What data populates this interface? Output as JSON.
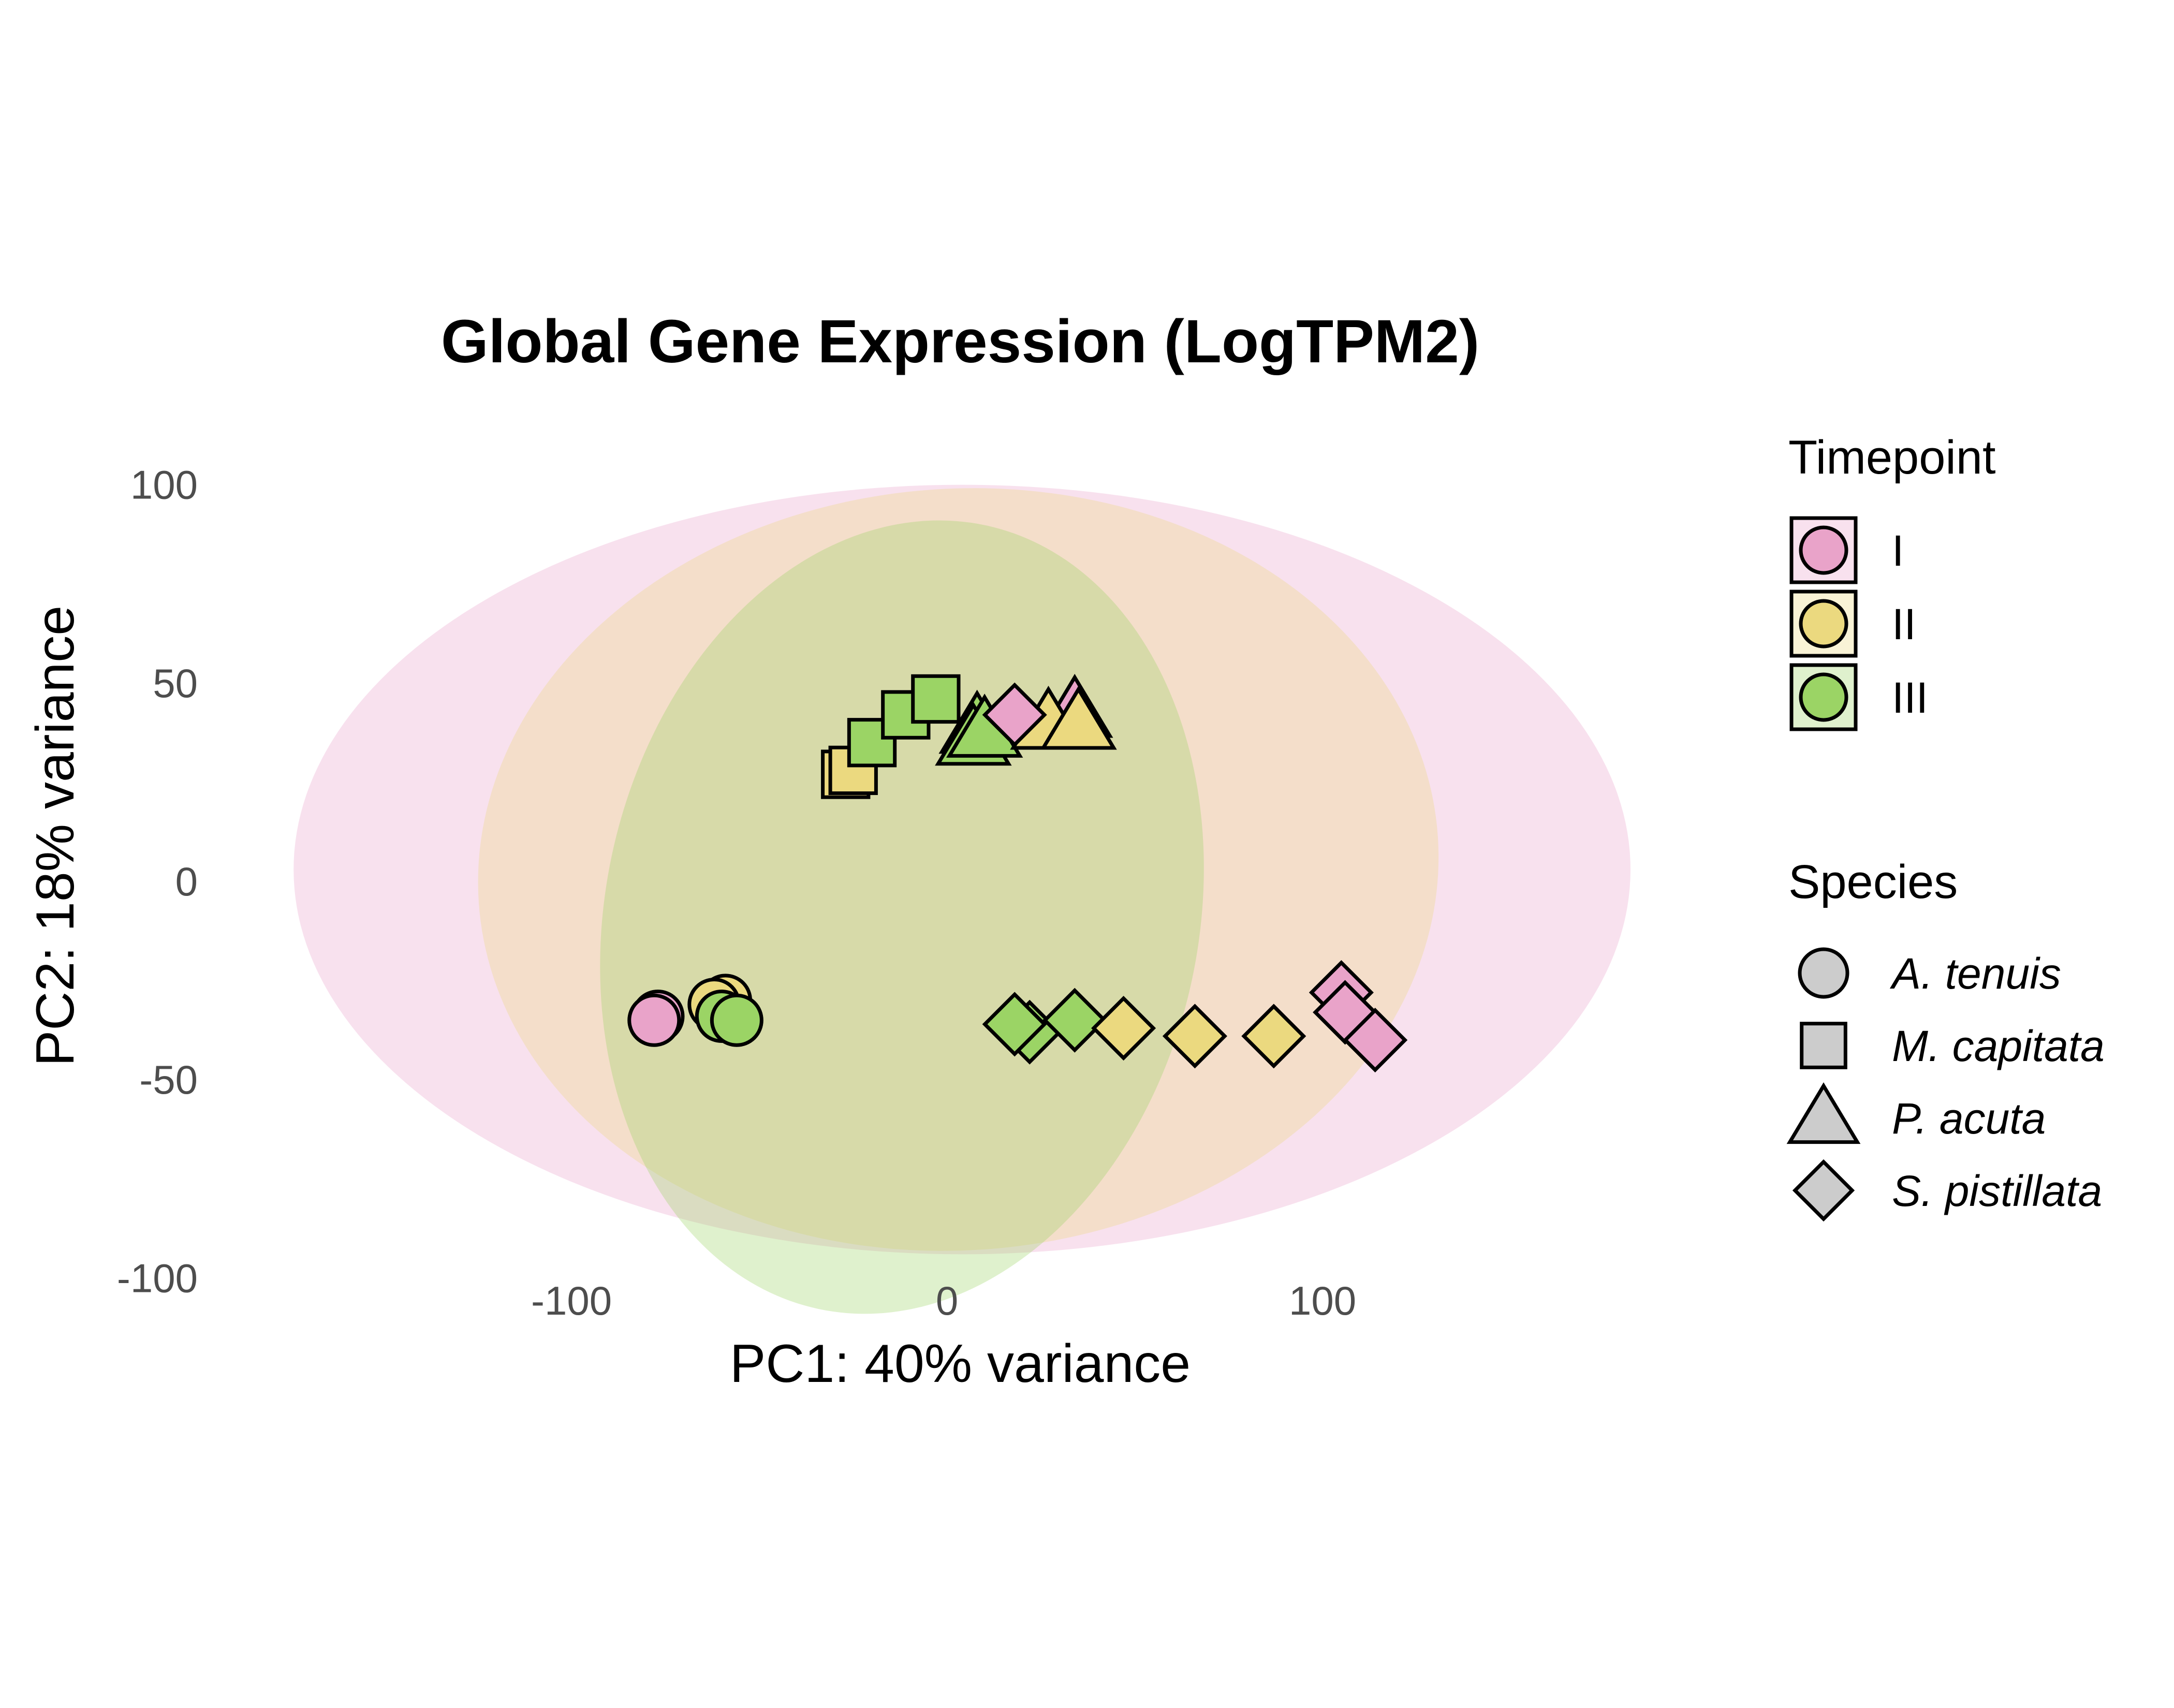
{
  "chart_data": {
    "type": "scatter",
    "title": "Global Gene Expression (LogTPM2)",
    "xlabel": "PC1: 40% variance",
    "ylabel": "PC2: 18% variance",
    "xlim": [
      -175,
      182
    ],
    "ylim": [
      -104,
      110
    ],
    "x_ticks": [
      -100,
      0,
      100
    ],
    "y_ticks": [
      100,
      50,
      0,
      -50,
      -100
    ],
    "grid": false,
    "legend_position": "right",
    "colors": {
      "I": "#E9A3C9",
      "II": "#EBD97F",
      "III": "#9BD465"
    },
    "timepoint_legend": {
      "title": "Timepoint",
      "items": [
        "I",
        "II",
        "III"
      ]
    },
    "species_legend": {
      "title": "Species",
      "items": [
        "A. tenuis",
        "M. capitata",
        "P. acuta",
        "S. pistillata"
      ]
    },
    "ellipses": [
      {
        "timepoint": "I",
        "center": [
          4,
          3
        ],
        "radius_x": 178,
        "radius_y": 97,
        "angle": 0
      },
      {
        "timepoint": "II",
        "center": [
          3,
          3
        ],
        "radius_x": 128,
        "radius_y": 96,
        "angle": -4
      },
      {
        "timepoint": "III",
        "center": [
          -12,
          -9
        ],
        "radius_x": 79,
        "radius_y": 101,
        "angle": 12
      }
    ],
    "points": [
      {
        "species": "A. tenuis",
        "timepoint": "I",
        "x": -77,
        "y": -34
      },
      {
        "species": "A. tenuis",
        "timepoint": "I",
        "x": -78,
        "y": -35
      },
      {
        "species": "A. tenuis",
        "timepoint": "II",
        "x": -59,
        "y": -30
      },
      {
        "species": "A. tenuis",
        "timepoint": "II",
        "x": -62,
        "y": -31
      },
      {
        "species": "A. tenuis",
        "timepoint": "III",
        "x": -60,
        "y": -34
      },
      {
        "species": "A. tenuis",
        "timepoint": "III",
        "x": -56,
        "y": -35
      },
      {
        "species": "M. capitata",
        "timepoint": "II",
        "x": -27,
        "y": 27
      },
      {
        "species": "M. capitata",
        "timepoint": "II",
        "x": -25,
        "y": 28
      },
      {
        "species": "M. capitata",
        "timepoint": "III",
        "x": -20,
        "y": 35
      },
      {
        "species": "M. capitata",
        "timepoint": "III",
        "x": -11,
        "y": 42
      },
      {
        "species": "M. capitata",
        "timepoint": "III",
        "x": -3,
        "y": 46
      },
      {
        "species": "P. acuta",
        "timepoint": "III",
        "x": 8,
        "y": 39
      },
      {
        "species": "P. acuta",
        "timepoint": "III",
        "x": 7,
        "y": 36
      },
      {
        "species": "P. acuta",
        "timepoint": "III",
        "x": 10,
        "y": 38
      },
      {
        "species": "P. acuta",
        "timepoint": "I",
        "x": 34,
        "y": 43
      },
      {
        "species": "P. acuta",
        "timepoint": "II",
        "x": 27,
        "y": 40
      },
      {
        "species": "P. acuta",
        "timepoint": "II",
        "x": 35,
        "y": 40
      },
      {
        "species": "S. pistillata",
        "timepoint": "I",
        "x": 18,
        "y": 42
      },
      {
        "species": "S. pistillata",
        "timepoint": "III",
        "x": 22,
        "y": -38
      },
      {
        "species": "S. pistillata",
        "timepoint": "III",
        "x": 18,
        "y": -36
      },
      {
        "species": "S. pistillata",
        "timepoint": "III",
        "x": 34,
        "y": -35
      },
      {
        "species": "S. pistillata",
        "timepoint": "II",
        "x": 47,
        "y": -37
      },
      {
        "species": "S. pistillata",
        "timepoint": "II",
        "x": 66,
        "y": -39
      },
      {
        "species": "S. pistillata",
        "timepoint": "II",
        "x": 87,
        "y": -39
      },
      {
        "species": "S. pistillata",
        "timepoint": "I",
        "x": 105,
        "y": -28
      },
      {
        "species": "S. pistillata",
        "timepoint": "I",
        "x": 106,
        "y": -33
      },
      {
        "species": "S. pistillata",
        "timepoint": "I",
        "x": 114,
        "y": -40
      }
    ]
  }
}
